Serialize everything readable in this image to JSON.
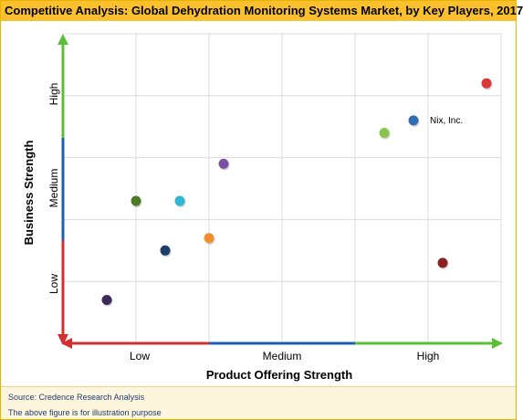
{
  "chart_data": {
    "type": "scatter",
    "title": "Competitive Analysis: Global Dehydration Monitoring Systems Market, by Key Players, 2017",
    "xlabel": "Product Offering Strength",
    "ylabel": "Business Strength",
    "x_tick_labels": [
      "Low",
      "Medium",
      "High"
    ],
    "y_tick_labels": [
      "Low",
      "Medium",
      "High"
    ],
    "xlim": [
      0,
      6
    ],
    "ylim": [
      0,
      5
    ],
    "grid": true,
    "colors": {
      "x_axis_segments": [
        "#d32f2f",
        "#1e5fb4",
        "#5cbf3a"
      ],
      "y_axis_segments": [
        "#d32f2f",
        "#1e5fb4",
        "#5cbf3a"
      ]
    },
    "points": [
      {
        "x": 5.8,
        "y": 4.2,
        "color": "#d9363a",
        "label": ""
      },
      {
        "x": 4.8,
        "y": 3.6,
        "color": "#2f6db5",
        "label": "Nix, Inc."
      },
      {
        "x": 4.4,
        "y": 3.4,
        "color": "#8cc34a",
        "label": ""
      },
      {
        "x": 2.2,
        "y": 2.9,
        "color": "#7b4fa6",
        "label": ""
      },
      {
        "x": 1.0,
        "y": 2.3,
        "color": "#4e7a27",
        "label": ""
      },
      {
        "x": 1.6,
        "y": 2.3,
        "color": "#2eb8d6",
        "label": ""
      },
      {
        "x": 2.0,
        "y": 1.7,
        "color": "#f28e2b",
        "label": ""
      },
      {
        "x": 1.4,
        "y": 1.5,
        "color": "#1e3f6e",
        "label": ""
      },
      {
        "x": 5.2,
        "y": 1.3,
        "color": "#8b2020",
        "label": ""
      },
      {
        "x": 0.6,
        "y": 0.7,
        "color": "#3b2a5a",
        "label": ""
      }
    ]
  },
  "footer": {
    "source": "Source: Credence Research Analysis",
    "note": "The above figure is for illustration purpose"
  }
}
